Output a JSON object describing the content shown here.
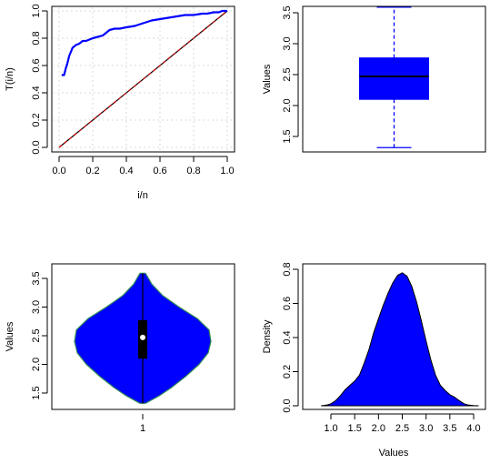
{
  "chart_data": [
    {
      "panel": "top-left",
      "type": "line",
      "xlabel": "i/n",
      "ylabel": "T(i/n)",
      "xlim": [
        0,
        1
      ],
      "ylim": [
        0,
        1
      ],
      "xticks": [
        "0.0",
        "0.2",
        "0.4",
        "0.6",
        "0.8",
        "1.0"
      ],
      "yticks": [
        "0.0",
        "0.2",
        "0.4",
        "0.6",
        "0.8",
        "1.0"
      ],
      "grid": true,
      "series": [
        {
          "color": "#0000ff",
          "x": [
            0.015,
            0.03,
            0.04,
            0.05,
            0.06,
            0.07,
            0.08,
            0.09,
            0.1,
            0.12,
            0.14,
            0.16,
            0.18,
            0.2,
            0.23,
            0.26,
            0.28,
            0.3,
            0.33,
            0.36,
            0.4,
            0.45,
            0.5,
            0.55,
            0.6,
            0.65,
            0.7,
            0.75,
            0.8,
            0.85,
            0.88,
            0.92,
            0.95,
            0.97,
            1.0
          ],
          "y": [
            0.53,
            0.53,
            0.58,
            0.62,
            0.67,
            0.7,
            0.73,
            0.74,
            0.75,
            0.76,
            0.78,
            0.78,
            0.79,
            0.8,
            0.81,
            0.82,
            0.84,
            0.86,
            0.87,
            0.87,
            0.88,
            0.89,
            0.91,
            0.93,
            0.94,
            0.95,
            0.96,
            0.97,
            0.97,
            0.98,
            0.98,
            0.99,
            0.99,
            1.0,
            1.0
          ]
        },
        {
          "color": "#cc0000",
          "style": "dashed",
          "x": [
            0,
            1
          ],
          "y": [
            0,
            1
          ]
        }
      ]
    },
    {
      "panel": "top-right",
      "type": "box",
      "ylabel": "Values",
      "ylim": [
        1.3,
        3.6
      ],
      "yticks": [
        "1.5",
        "2.0",
        "2.5",
        "3.0",
        "3.5"
      ],
      "min": 1.32,
      "q1": 2.1,
      "median": 2.47,
      "q3": 2.77,
      "max": 3.59,
      "color": "#0000ff"
    },
    {
      "panel": "bottom-left",
      "type": "violin",
      "ylabel": "Values",
      "xticks": [
        "1"
      ],
      "ylim": [
        1.3,
        3.6
      ],
      "yticks": [
        "1.5",
        "2.0",
        "2.5",
        "3.0",
        "3.5"
      ],
      "min": 1.32,
      "q1": 2.1,
      "median": 2.47,
      "q3": 2.77,
      "max": 3.59,
      "fill": "#0000ff",
      "outline": "#2e8b57"
    },
    {
      "panel": "bottom-right",
      "type": "area",
      "xlabel": "Values",
      "ylabel": "Density",
      "xlim": [
        0.7,
        4.2
      ],
      "ylim": [
        0,
        0.8
      ],
      "xticks": [
        "1.0",
        "1.5",
        "2.0",
        "2.5",
        "3.0",
        "3.5",
        "4.0"
      ],
      "yticks": [
        "0.0",
        "0.2",
        "0.4",
        "0.6",
        "0.8"
      ],
      "fill": "#0000ff",
      "x": [
        0.8,
        0.9,
        1.0,
        1.1,
        1.2,
        1.3,
        1.4,
        1.5,
        1.6,
        1.7,
        1.8,
        1.9,
        2.0,
        2.1,
        2.2,
        2.3,
        2.4,
        2.5,
        2.6,
        2.7,
        2.8,
        2.9,
        3.0,
        3.1,
        3.2,
        3.3,
        3.4,
        3.5,
        3.6,
        3.7,
        3.8,
        3.9,
        4.0,
        4.1
      ],
      "y": [
        0.0,
        0.004,
        0.012,
        0.03,
        0.06,
        0.095,
        0.12,
        0.145,
        0.18,
        0.25,
        0.33,
        0.43,
        0.51,
        0.59,
        0.66,
        0.72,
        0.765,
        0.78,
        0.76,
        0.7,
        0.61,
        0.5,
        0.38,
        0.27,
        0.18,
        0.12,
        0.09,
        0.065,
        0.05,
        0.03,
        0.012,
        0.004,
        0.001,
        0.0
      ]
    }
  ]
}
